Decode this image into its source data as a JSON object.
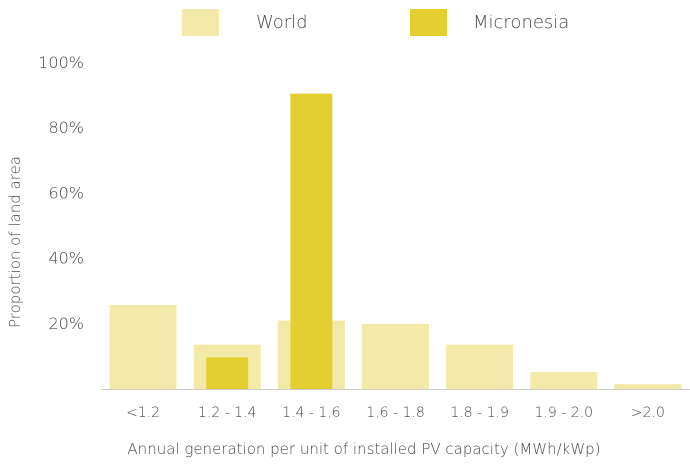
{
  "chart_data": {
    "type": "bar",
    "title": "",
    "xlabel": "Annual generation per unit of installed PV capacity (MWh/kWp)",
    "ylabel": "Proportion of land area",
    "ylim": [
      0,
      100
    ],
    "y_ticks": [
      20,
      40,
      60,
      80,
      100
    ],
    "y_tick_labels": [
      "20%",
      "40%",
      "60%",
      "80%",
      "100%"
    ],
    "categories": [
      "<1.2",
      "1.2 - 1.4",
      "1.4 - 1.6",
      "1.6 - 1.8",
      "1.8 - 1.9",
      "1.9 - 2.0",
      ">2.0"
    ],
    "series": [
      {
        "name": "World",
        "color": "#f3eaaa",
        "values": [
          25.8,
          13.6,
          21.0,
          20.0,
          13.6,
          5.2,
          1.5
        ]
      },
      {
        "name": "Micronesia",
        "color": "#e3cf30",
        "values": [
          0,
          9.7,
          90.6,
          0,
          0,
          0,
          0
        ]
      }
    ],
    "legend": "top",
    "grid": false,
    "baseline_color": "#cccccc"
  }
}
